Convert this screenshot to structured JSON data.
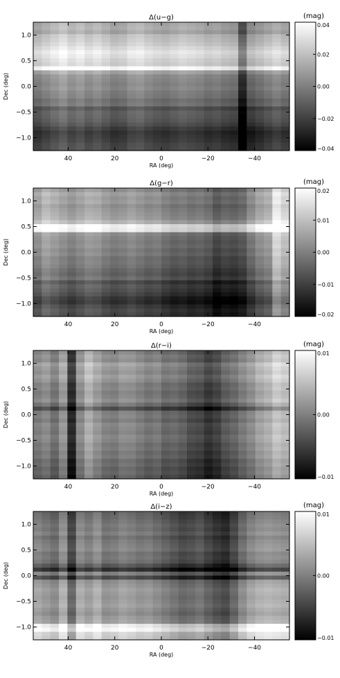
{
  "chart_data": [
    {
      "type": "heatmap",
      "title": "Δ(u−g)",
      "xlabel": "RA (deg)",
      "ylabel": "Dec (deg)",
      "xlim": [
        55,
        -55
      ],
      "ylim": [
        -1.25,
        1.25
      ],
      "x_ticks": [
        "40",
        "20",
        "0",
        "−20",
        "−40"
      ],
      "y_ticks": [
        "1.0",
        "0.5",
        "0.0",
        "−0.5",
        "−1.0"
      ],
      "colorbar": {
        "label": "(mag)",
        "range": [
          -0.04,
          0.04
        ],
        "ticks": [
          "0.04",
          "0.02",
          "0.00",
          "−0.02",
          "−0.04"
        ]
      },
      "colormap": [
        "#000000",
        "#ffffff"
      ],
      "column_pattern": [
        0.5,
        0.55,
        0.6,
        0.65,
        0.58,
        0.62,
        0.56,
        0.6,
        0.55,
        0.5,
        0.52,
        0.58,
        0.6,
        0.55,
        0.52,
        0.5,
        0.53,
        0.56,
        0.54,
        0.52,
        0.48,
        0.5,
        0.46,
        0.44,
        0.15,
        0.4,
        0.45,
        0.5,
        0.55,
        0.5
      ],
      "row_pattern": [
        0.62,
        0.64,
        0.6,
        0.7,
        0.72,
        0.75,
        0.8,
        0.85,
        0.82,
        0.78,
        0.76,
        0.92,
        0.6,
        0.52,
        0.5,
        0.48,
        0.5,
        0.46,
        0.45,
        0.4,
        0.42,
        0.3,
        0.35,
        0.34,
        0.32,
        0.28,
        0.22,
        0.18,
        0.2,
        0.22,
        0.25,
        0.26
      ]
    },
    {
      "type": "heatmap",
      "title": "Δ(g−r)",
      "xlabel": "RA (deg)",
      "ylabel": "Dec (deg)",
      "xlim": [
        55,
        -55
      ],
      "ylim": [
        -1.25,
        1.25
      ],
      "x_ticks": [
        "40",
        "20",
        "0",
        "−20",
        "−40"
      ],
      "y_ticks": [
        "1.0",
        "0.5",
        "0.0",
        "−0.5",
        "−1.0"
      ],
      "colorbar": {
        "label": "(mag)",
        "range": [
          -0.02,
          0.02
        ],
        "ticks": [
          "0.02",
          "0.01",
          "0.00",
          "−0.01",
          "−0.02"
        ]
      },
      "colormap": [
        "#000000",
        "#ffffff"
      ],
      "column_pattern": [
        0.55,
        0.65,
        0.6,
        0.55,
        0.5,
        0.55,
        0.6,
        0.58,
        0.52,
        0.48,
        0.5,
        0.54,
        0.5,
        0.46,
        0.48,
        0.42,
        0.38,
        0.4,
        0.36,
        0.38,
        0.34,
        0.25,
        0.3,
        0.28,
        0.32,
        0.45,
        0.55,
        0.6,
        0.85,
        0.75
      ],
      "row_pattern": [
        0.55,
        0.62,
        0.58,
        0.6,
        0.55,
        0.58,
        0.6,
        0.62,
        0.7,
        0.92,
        0.9,
        0.55,
        0.52,
        0.5,
        0.52,
        0.48,
        0.5,
        0.45,
        0.46,
        0.44,
        0.4,
        0.38,
        0.42,
        0.3,
        0.35,
        0.32,
        0.28,
        0.22,
        0.2,
        0.26,
        0.3,
        0.28
      ]
    },
    {
      "type": "heatmap",
      "title": "Δ(r−i)",
      "xlabel": "RA (deg)",
      "ylabel": "Dec (deg)",
      "xlim": [
        55,
        -55
      ],
      "ylim": [
        -1.25,
        1.25
      ],
      "x_ticks": [
        "40",
        "20",
        "0",
        "−20",
        "−40"
      ],
      "y_ticks": [
        "1.0",
        "0.5",
        "0.0",
        "−0.5",
        "−1.0"
      ],
      "colorbar": {
        "label": "(mag)",
        "range": [
          -0.01,
          0.01
        ],
        "ticks": [
          "0.01",
          "0.00",
          "−0.01"
        ]
      },
      "colormap": [
        "#000000",
        "#ffffff"
      ],
      "column_pattern": [
        0.5,
        0.55,
        0.45,
        0.6,
        0.15,
        0.55,
        0.7,
        0.6,
        0.52,
        0.5,
        0.56,
        0.55,
        0.5,
        0.45,
        0.48,
        0.4,
        0.42,
        0.38,
        0.3,
        0.28,
        0.2,
        0.25,
        0.35,
        0.4,
        0.48,
        0.55,
        0.65,
        0.7,
        0.8,
        0.75
      ],
      "row_pattern": [
        0.5,
        0.55,
        0.52,
        0.62,
        0.58,
        0.55,
        0.6,
        0.56,
        0.5,
        0.52,
        0.48,
        0.5,
        0.54,
        0.45,
        0.3,
        0.48,
        0.5,
        0.46,
        0.52,
        0.5,
        0.48,
        0.52,
        0.5,
        0.46,
        0.48,
        0.44,
        0.46,
        0.4,
        0.42,
        0.38,
        0.4,
        0.36
      ]
    },
    {
      "type": "heatmap",
      "title": "Δ(i−z)",
      "xlabel": "RA (deg)",
      "ylabel": "Dec (deg)",
      "xlim": [
        55,
        -55
      ],
      "ylim": [
        -1.25,
        1.25
      ],
      "x_ticks": [
        "40",
        "20",
        "0",
        "−20",
        "−40"
      ],
      "y_ticks": [
        "1.0",
        "0.5",
        "0.0",
        "−0.5",
        "−1.0"
      ],
      "colorbar": {
        "label": "(mag)",
        "range": [
          -0.01,
          0.01
        ],
        "ticks": [
          "0.01",
          "0.00",
          "−0.01"
        ]
      },
      "colormap": [
        "#000000",
        "#ffffff"
      ],
      "column_pattern": [
        0.55,
        0.5,
        0.45,
        0.6,
        0.3,
        0.58,
        0.52,
        0.6,
        0.48,
        0.5,
        0.55,
        0.52,
        0.48,
        0.5,
        0.45,
        0.4,
        0.35,
        0.3,
        0.32,
        0.36,
        0.28,
        0.22,
        0.18,
        0.3,
        0.45,
        0.55,
        0.6,
        0.62,
        0.6,
        0.58
      ],
      "row_pattern": [
        0.4,
        0.42,
        0.45,
        0.48,
        0.46,
        0.5,
        0.44,
        0.48,
        0.5,
        0.52,
        0.46,
        0.48,
        0.45,
        0.35,
        0.2,
        0.5,
        0.3,
        0.55,
        0.58,
        0.62,
        0.6,
        0.58,
        0.6,
        0.62,
        0.58,
        0.55,
        0.6,
        0.62,
        0.9,
        0.95,
        0.8,
        0.78
      ]
    }
  ]
}
